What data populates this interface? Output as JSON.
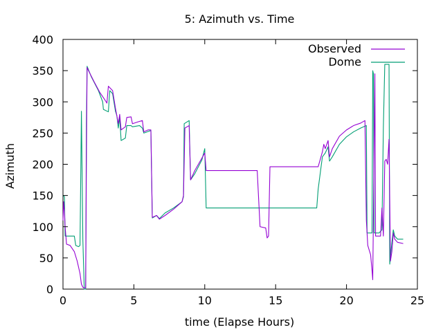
{
  "chart_data": {
    "type": "line",
    "title": "5: Azimuth vs. Time",
    "xlabel": "time (Elapse Hours)",
    "ylabel": "Azimuth",
    "xlim": [
      0,
      25
    ],
    "ylim": [
      0,
      400
    ],
    "xticks": [
      0,
      5,
      10,
      15,
      20,
      25
    ],
    "yticks": [
      0,
      50,
      100,
      150,
      200,
      250,
      300,
      350,
      400
    ],
    "grid": false,
    "legend_position": "top-right",
    "series": [
      {
        "name": "Observed",
        "color": "#9400d3",
        "points": [
          [
            0.0,
            110
          ],
          [
            0.05,
            140
          ],
          [
            0.1,
            125
          ],
          [
            0.15,
            100
          ],
          [
            0.25,
            72
          ],
          [
            0.5,
            70
          ],
          [
            0.8,
            60
          ],
          [
            1.0,
            45
          ],
          [
            1.2,
            25
          ],
          [
            1.3,
            8
          ],
          [
            1.4,
            3
          ],
          [
            1.5,
            2
          ],
          [
            1.6,
            2
          ],
          [
            1.65,
            200
          ],
          [
            1.7,
            355
          ],
          [
            1.8,
            350
          ],
          [
            2.2,
            332
          ],
          [
            2.6,
            315
          ],
          [
            2.9,
            305
          ],
          [
            3.1,
            298
          ],
          [
            3.2,
            325
          ],
          [
            3.5,
            318
          ],
          [
            3.7,
            290
          ],
          [
            3.9,
            265
          ],
          [
            4.0,
            280
          ],
          [
            4.1,
            255
          ],
          [
            4.4,
            260
          ],
          [
            4.5,
            275
          ],
          [
            4.8,
            276
          ],
          [
            4.9,
            265
          ],
          [
            5.3,
            268
          ],
          [
            5.6,
            270
          ],
          [
            5.7,
            252
          ],
          [
            6.0,
            255
          ],
          [
            6.2,
            255
          ],
          [
            6.3,
            115
          ],
          [
            6.6,
            118
          ],
          [
            6.8,
            112
          ],
          [
            7.2,
            118
          ],
          [
            7.8,
            128
          ],
          [
            8.4,
            140
          ],
          [
            8.5,
            150
          ],
          [
            8.6,
            258
          ],
          [
            8.9,
            262
          ],
          [
            9.0,
            175
          ],
          [
            9.3,
            190
          ],
          [
            9.8,
            210
          ],
          [
            10.0,
            218
          ],
          [
            10.1,
            190
          ],
          [
            13.7,
            190
          ],
          [
            13.9,
            100
          ],
          [
            14.3,
            98
          ],
          [
            14.4,
            82
          ],
          [
            14.5,
            85
          ],
          [
            14.6,
            196
          ],
          [
            18.0,
            196
          ],
          [
            18.3,
            220
          ],
          [
            18.4,
            232
          ],
          [
            18.5,
            225
          ],
          [
            18.7,
            238
          ],
          [
            18.8,
            212
          ],
          [
            19.0,
            225
          ],
          [
            19.5,
            245
          ],
          [
            20.0,
            255
          ],
          [
            20.5,
            262
          ],
          [
            21.0,
            266
          ],
          [
            21.3,
            270
          ],
          [
            21.4,
            110
          ],
          [
            21.5,
            70
          ],
          [
            21.7,
            55
          ],
          [
            21.8,
            30
          ],
          [
            21.85,
            15
          ],
          [
            21.9,
            120
          ],
          [
            22.0,
            345
          ],
          [
            22.05,
            85
          ],
          [
            22.4,
            85
          ],
          [
            22.5,
            130
          ],
          [
            22.6,
            85
          ],
          [
            22.7,
            205
          ],
          [
            22.8,
            208
          ],
          [
            22.9,
            200
          ],
          [
            23.0,
            240
          ],
          [
            23.1,
            45
          ],
          [
            23.2,
            60
          ],
          [
            23.3,
            90
          ],
          [
            23.4,
            80
          ],
          [
            23.6,
            75
          ],
          [
            24.0,
            73
          ]
        ]
      },
      {
        "name": "Dome",
        "color": "#009e73",
        "points": [
          [
            0.0,
            150
          ],
          [
            0.1,
            148
          ],
          [
            0.15,
            85
          ],
          [
            0.8,
            85
          ],
          [
            0.9,
            70
          ],
          [
            1.1,
            68
          ],
          [
            1.2,
            70
          ],
          [
            1.3,
            285
          ],
          [
            1.4,
            80
          ],
          [
            1.5,
            0
          ],
          [
            1.6,
            0
          ],
          [
            1.65,
            265
          ],
          [
            1.7,
            357
          ],
          [
            2.0,
            340
          ],
          [
            2.5,
            318
          ],
          [
            2.8,
            300
          ],
          [
            2.85,
            288
          ],
          [
            3.2,
            284
          ],
          [
            3.3,
            318
          ],
          [
            3.5,
            313
          ],
          [
            3.7,
            285
          ],
          [
            3.8,
            278
          ],
          [
            3.9,
            258
          ],
          [
            4.0,
            275
          ],
          [
            4.1,
            238
          ],
          [
            4.4,
            242
          ],
          [
            4.5,
            262
          ],
          [
            4.8,
            262
          ],
          [
            4.9,
            260
          ],
          [
            5.4,
            262
          ],
          [
            5.6,
            258
          ],
          [
            5.7,
            250
          ],
          [
            6.2,
            254
          ],
          [
            6.3,
            114
          ],
          [
            6.6,
            118
          ],
          [
            6.8,
            113
          ],
          [
            7.2,
            122
          ],
          [
            7.8,
            130
          ],
          [
            8.4,
            140
          ],
          [
            8.5,
            148
          ],
          [
            8.55,
            265
          ],
          [
            8.9,
            270
          ],
          [
            9.0,
            175
          ],
          [
            9.3,
            185
          ],
          [
            9.8,
            207
          ],
          [
            10.0,
            225
          ],
          [
            10.1,
            130
          ],
          [
            17.9,
            130
          ],
          [
            18.0,
            160
          ],
          [
            18.2,
            195
          ],
          [
            18.3,
            212
          ],
          [
            18.5,
            218
          ],
          [
            18.7,
            228
          ],
          [
            18.8,
            205
          ],
          [
            19.0,
            212
          ],
          [
            19.5,
            232
          ],
          [
            20.0,
            244
          ],
          [
            20.5,
            252
          ],
          [
            21.0,
            258
          ],
          [
            21.4,
            262
          ],
          [
            21.45,
            90
          ],
          [
            21.8,
            90
          ],
          [
            21.85,
            350
          ],
          [
            21.9,
            345
          ],
          [
            21.95,
            90
          ],
          [
            22.3,
            90
          ],
          [
            22.5,
            95
          ],
          [
            22.6,
            260
          ],
          [
            22.7,
            360
          ],
          [
            23.0,
            360
          ],
          [
            23.05,
            40
          ],
          [
            23.2,
            75
          ],
          [
            23.3,
            95
          ],
          [
            23.4,
            85
          ],
          [
            23.6,
            80
          ],
          [
            24.0,
            80
          ]
        ]
      }
    ]
  }
}
